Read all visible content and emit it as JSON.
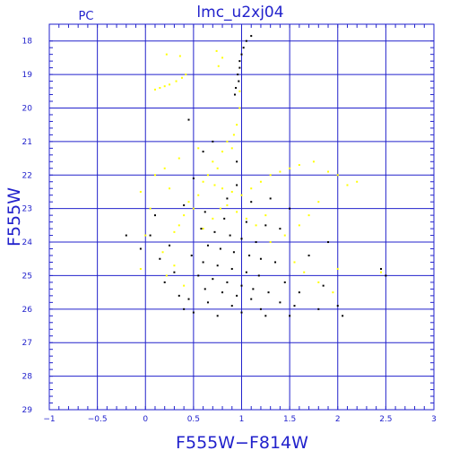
{
  "title": "lmc_u2xj04",
  "corner_label": "PC",
  "chart_data": {
    "type": "scatter",
    "title": "lmc_u2xj04",
    "xlabel": "F555W−F814W",
    "ylabel": "F555W",
    "xlim": [
      -1,
      3
    ],
    "ylim": [
      29,
      17.5
    ],
    "y_inverted": true,
    "grid": true,
    "x_ticks": [
      -1,
      -0.5,
      0,
      0.5,
      1,
      1.5,
      2,
      2.5,
      3
    ],
    "x_tick_labels": [
      "−1",
      "−0.5",
      "0",
      "0.5",
      "1",
      "1.5",
      "2",
      "2.5",
      "3"
    ],
    "y_ticks": [
      18,
      19,
      20,
      21,
      22,
      23,
      24,
      25,
      26,
      27,
      28,
      29
    ],
    "y_tick_labels": [
      "18",
      "19",
      "20",
      "21",
      "22",
      "23",
      "24",
      "25",
      "26",
      "27",
      "28",
      "29"
    ],
    "series": [
      {
        "color": "#ffff00",
        "points": [
          [
            0.1,
            19.45
          ],
          [
            0.15,
            19.4
          ],
          [
            0.2,
            19.35
          ],
          [
            0.25,
            19.3
          ],
          [
            0.32,
            19.2
          ],
          [
            0.38,
            19.1
          ],
          [
            0.42,
            19.0
          ],
          [
            0.22,
            18.4
          ],
          [
            0.36,
            18.45
          ],
          [
            0.74,
            18.3
          ],
          [
            0.8,
            18.5
          ],
          [
            0.76,
            18.75
          ],
          [
            0.98,
            19.5
          ],
          [
            0.98,
            20.0
          ],
          [
            0.95,
            20.5
          ],
          [
            0.92,
            20.8
          ],
          [
            0.85,
            21.0
          ],
          [
            0.9,
            21.2
          ],
          [
            0.8,
            21.3
          ],
          [
            0.55,
            21.2
          ],
          [
            0.35,
            21.5
          ],
          [
            0.7,
            21.6
          ],
          [
            0.75,
            21.8
          ],
          [
            0.65,
            22.0
          ],
          [
            0.6,
            22.2
          ],
          [
            0.72,
            22.3
          ],
          [
            0.8,
            22.4
          ],
          [
            0.9,
            22.5
          ],
          [
            1.0,
            22.6
          ],
          [
            1.1,
            22.4
          ],
          [
            1.2,
            22.2
          ],
          [
            1.3,
            22.0
          ],
          [
            1.4,
            21.9
          ],
          [
            1.5,
            21.8
          ],
          [
            1.6,
            21.7
          ],
          [
            1.75,
            21.6
          ],
          [
            1.9,
            21.9
          ],
          [
            2.0,
            22.0
          ],
          [
            2.1,
            22.3
          ],
          [
            2.2,
            22.2
          ],
          [
            1.8,
            22.8
          ],
          [
            1.7,
            23.2
          ],
          [
            1.6,
            23.5
          ],
          [
            1.45,
            23.8
          ],
          [
            1.3,
            24.0
          ],
          [
            0.55,
            22.6
          ],
          [
            0.5,
            23.0
          ],
          [
            0.45,
            22.8
          ],
          [
            0.4,
            23.2
          ],
          [
            0.35,
            23.5
          ],
          [
            0.3,
            23.7
          ],
          [
            0.25,
            22.4
          ],
          [
            0.2,
            21.8
          ],
          [
            0.1,
            22.0
          ],
          [
            -0.05,
            22.5
          ],
          [
            0.05,
            23.0
          ],
          [
            0.0,
            23.8
          ],
          [
            0.18,
            24.3
          ],
          [
            0.3,
            24.7
          ],
          [
            0.4,
            25.3
          ],
          [
            0.22,
            25.0
          ],
          [
            1.55,
            24.6
          ],
          [
            1.65,
            24.9
          ],
          [
            1.8,
            25.2
          ],
          [
            2.0,
            24.8
          ],
          [
            2.45,
            24.9
          ],
          [
            1.95,
            25.5
          ],
          [
            -0.05,
            24.8
          ],
          [
            0.6,
            23.6
          ],
          [
            0.7,
            23.3
          ],
          [
            0.78,
            23.0
          ],
          [
            0.85,
            22.9
          ],
          [
            0.95,
            23.1
          ],
          [
            1.05,
            23.3
          ],
          [
            1.15,
            23.5
          ],
          [
            1.25,
            23.2
          ]
        ]
      },
      {
        "color": "#000000",
        "points": [
          [
            1.1,
            17.85
          ],
          [
            1.05,
            18.0
          ],
          [
            1.02,
            18.2
          ],
          [
            1.0,
            18.4
          ],
          [
            0.98,
            18.6
          ],
          [
            0.98,
            18.8
          ],
          [
            0.96,
            19.0
          ],
          [
            0.97,
            19.2
          ],
          [
            0.94,
            19.4
          ],
          [
            0.93,
            19.6
          ],
          [
            0.45,
            20.35
          ],
          [
            0.7,
            21.0
          ],
          [
            0.6,
            21.3
          ],
          [
            0.95,
            21.6
          ],
          [
            0.5,
            22.1
          ],
          [
            0.95,
            22.3
          ],
          [
            0.85,
            22.7
          ],
          [
            1.1,
            22.8
          ],
          [
            0.4,
            22.9
          ],
          [
            0.62,
            23.1
          ],
          [
            0.82,
            23.3
          ],
          [
            1.05,
            23.4
          ],
          [
            1.25,
            23.5
          ],
          [
            1.4,
            23.6
          ],
          [
            0.58,
            23.6
          ],
          [
            0.72,
            23.7
          ],
          [
            0.88,
            23.8
          ],
          [
            1.0,
            23.9
          ],
          [
            1.15,
            24.0
          ],
          [
            0.65,
            24.1
          ],
          [
            0.78,
            24.2
          ],
          [
            0.92,
            24.3
          ],
          [
            1.08,
            24.4
          ],
          [
            1.2,
            24.5
          ],
          [
            1.35,
            24.6
          ],
          [
            0.48,
            24.4
          ],
          [
            0.6,
            24.6
          ],
          [
            0.75,
            24.7
          ],
          [
            0.9,
            24.8
          ],
          [
            1.05,
            24.9
          ],
          [
            1.18,
            25.0
          ],
          [
            0.55,
            25.0
          ],
          [
            0.7,
            25.1
          ],
          [
            0.85,
            25.2
          ],
          [
            1.0,
            25.3
          ],
          [
            1.12,
            25.4
          ],
          [
            1.28,
            25.5
          ],
          [
            0.62,
            25.4
          ],
          [
            0.8,
            25.5
          ],
          [
            0.95,
            25.6
          ],
          [
            1.1,
            25.7
          ],
          [
            1.4,
            25.8
          ],
          [
            1.55,
            25.9
          ],
          [
            0.45,
            25.7
          ],
          [
            0.65,
            25.8
          ],
          [
            0.9,
            25.9
          ],
          [
            1.2,
            26.0
          ],
          [
            1.5,
            26.2
          ],
          [
            0.5,
            26.1
          ],
          [
            1.0,
            26.1
          ],
          [
            1.45,
            25.2
          ],
          [
            1.6,
            25.5
          ],
          [
            1.85,
            25.3
          ],
          [
            2.0,
            25.9
          ],
          [
            2.05,
            26.2
          ],
          [
            1.8,
            26.0
          ],
          [
            0.3,
            24.9
          ],
          [
            0.2,
            25.2
          ],
          [
            0.15,
            24.5
          ],
          [
            0.05,
            23.8
          ],
          [
            0.25,
            24.1
          ],
          [
            0.35,
            25.6
          ],
          [
            0.1,
            23.2
          ],
          [
            -0.2,
            23.8
          ],
          [
            -0.05,
            24.2
          ],
          [
            2.45,
            24.8
          ],
          [
            2.5,
            25.0
          ],
          [
            1.3,
            22.7
          ],
          [
            1.5,
            23.0
          ],
          [
            1.7,
            24.4
          ],
          [
            1.9,
            24.0
          ],
          [
            0.4,
            26.0
          ],
          [
            0.75,
            26.2
          ],
          [
            1.25,
            26.2
          ]
        ]
      }
    ]
  }
}
